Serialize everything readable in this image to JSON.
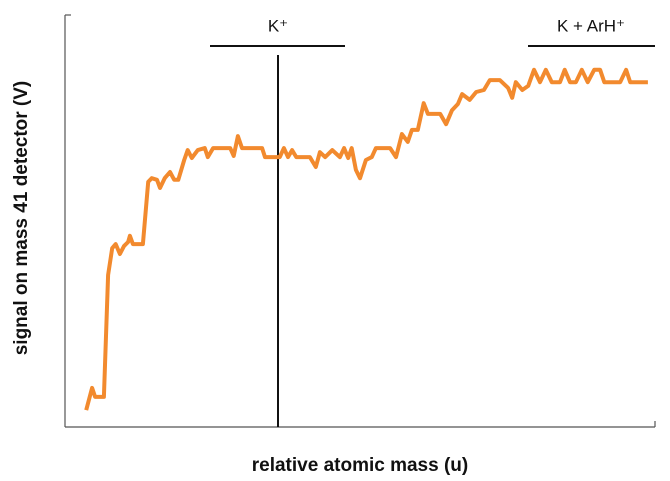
{
  "chart_data": {
    "type": "line",
    "xlabel": "relative atomic mass (u)",
    "ylabel": "signal on mass 41 detector (V)",
    "annotations": [
      "K⁺",
      "K + ArH⁺"
    ],
    "xlim": [
      0,
      100
    ],
    "ylim": [
      0,
      100
    ],
    "series": [
      {
        "color": "#f28a2e",
        "x": [
          3.6,
          4.6,
          5.1,
          6.6,
          7.3,
          8.0,
          8.6,
          9.3,
          10.0,
          10.7,
          11.0,
          11.5,
          13.2,
          14.1,
          14.7,
          15.6,
          16.1,
          16.9,
          17.8,
          18.5,
          19.2,
          20.2,
          20.8,
          21.5,
          22.5,
          23.7,
          24.2,
          25.1,
          28.0,
          28.6,
          29.3,
          30.0,
          33.4,
          33.9,
          36.4,
          37.1,
          37.8,
          38.5,
          39.2,
          41.5,
          42.5,
          43.2,
          44.1,
          45.3,
          46.6,
          47.3,
          48.0,
          48.6,
          49.3,
          50.0,
          51.0,
          52.0,
          52.7,
          55.1,
          56.1,
          57.1,
          58.1,
          58.8,
          59.8,
          60.8,
          61.5,
          63.6,
          64.6,
          65.6,
          66.6,
          67.3,
          68.6,
          69.7,
          71.0,
          72.0,
          73.7,
          75.1,
          75.8,
          76.4,
          77.5,
          78.5,
          79.5,
          80.5,
          81.5,
          82.5,
          83.9,
          84.7,
          85.6,
          86.6,
          87.6,
          88.6,
          89.7,
          90.7,
          91.4,
          94.1,
          95.1,
          95.8,
          98.8
        ],
        "values": [
          4.1,
          9.5,
          7.3,
          7.3,
          36.9,
          43.4,
          44.4,
          42.0,
          43.9,
          44.9,
          46.4,
          44.4,
          44.4,
          59.5,
          60.4,
          60.0,
          58.0,
          60.4,
          61.9,
          60.0,
          60.0,
          64.8,
          67.2,
          65.3,
          67.2,
          67.7,
          65.5,
          67.7,
          67.7,
          65.8,
          70.6,
          67.7,
          67.7,
          65.5,
          65.5,
          67.7,
          65.5,
          67.2,
          65.5,
          65.5,
          63.1,
          66.7,
          65.5,
          67.2,
          65.5,
          67.7,
          65.3,
          67.7,
          62.4,
          60.4,
          64.8,
          65.5,
          67.7,
          67.7,
          65.5,
          71.1,
          69.2,
          72.1,
          72.1,
          78.6,
          76.0,
          76.0,
          73.5,
          76.9,
          78.4,
          80.8,
          79.4,
          81.3,
          81.8,
          84.2,
          84.2,
          82.3,
          79.9,
          83.7,
          81.8,
          82.8,
          86.7,
          83.7,
          86.7,
          83.7,
          83.7,
          86.7,
          83.7,
          83.7,
          86.7,
          83.7,
          86.7,
          86.7,
          83.7,
          83.7,
          86.7,
          83.7,
          83.7
        ]
      }
    ]
  }
}
